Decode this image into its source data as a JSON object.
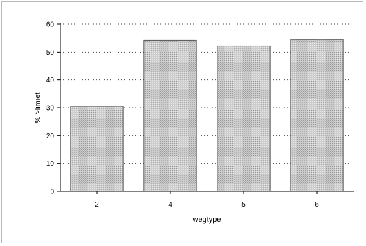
{
  "chart_data": {
    "type": "bar",
    "title": "",
    "xlabel": "wegtype",
    "ylabel": "% >limiet",
    "categories": [
      "2",
      "4",
      "5",
      "6"
    ],
    "values": [
      30.5,
      54.2,
      52.2,
      54.5
    ],
    "ylim": [
      0,
      60
    ],
    "yticks": [
      "0",
      "10",
      "20",
      "30",
      "40",
      "50",
      "60"
    ],
    "grid": "horizontal dotted",
    "legend": "none",
    "colors": {
      "bar_fill": "#c8c8c8",
      "bar_stroke": "#555555",
      "axis": "#000000",
      "grid": "#444444"
    }
  }
}
